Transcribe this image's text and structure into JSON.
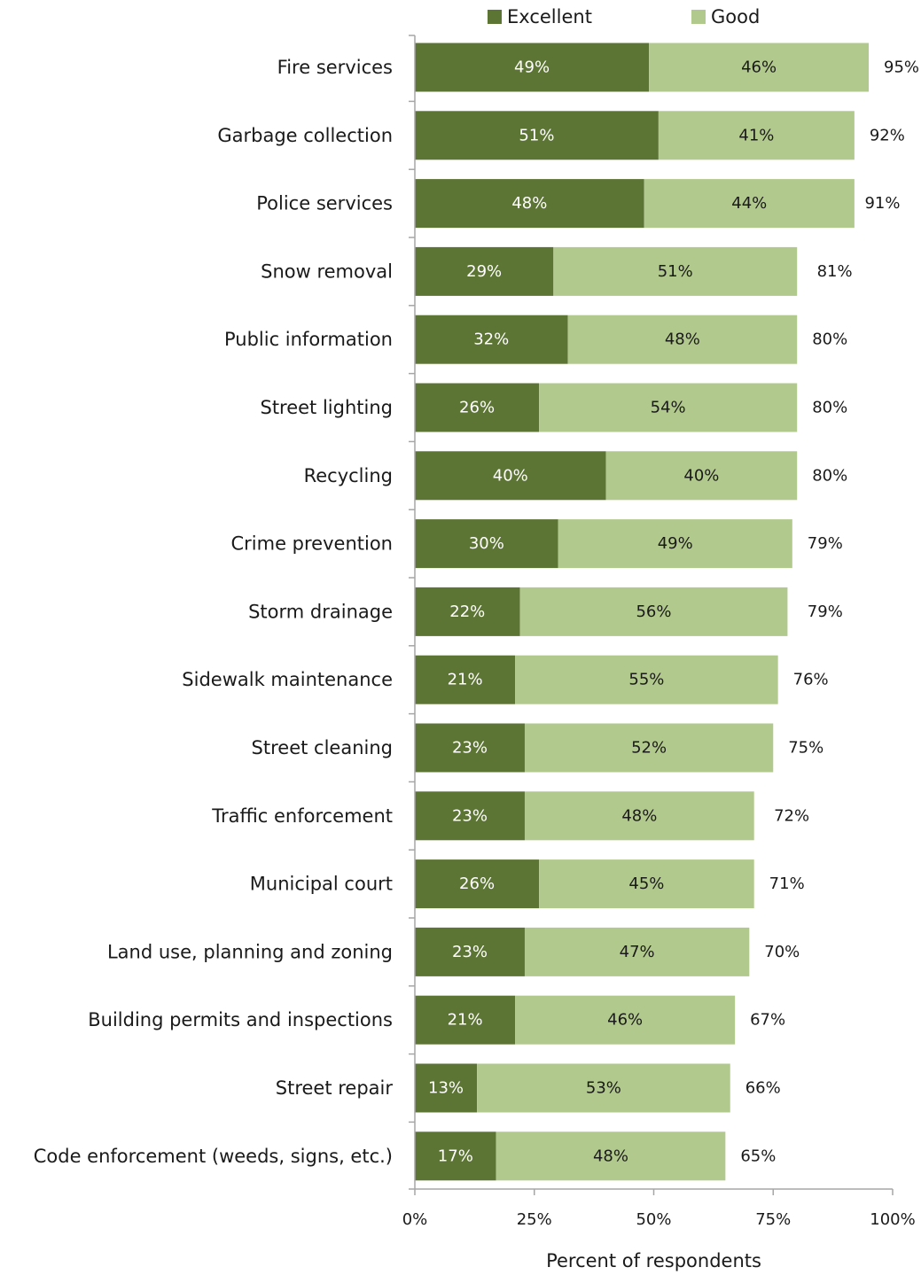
{
  "chart_data": {
    "type": "bar",
    "orientation": "horizontal",
    "stacked": true,
    "title": "",
    "xlabel": "Percent of respondents",
    "ylabel": "",
    "xlim": [
      0,
      100
    ],
    "x_ticks": [
      "0%",
      "25%",
      "50%",
      "75%",
      "100%"
    ],
    "x_tick_values": [
      0,
      25,
      50,
      75,
      100
    ],
    "grid": false,
    "legend_position": "top",
    "categories": [
      "Fire services",
      "Garbage collection",
      "Police services",
      "Snow removal",
      "Public information",
      "Street lighting",
      "Recycling",
      "Crime prevention",
      "Storm drainage",
      "Sidewalk maintenance",
      "Street cleaning",
      "Traffic enforcement",
      "Municipal court",
      "Land use, planning and zoning",
      "Building permits and inspections",
      "Street repair",
      "Code enforcement (weeds, signs, etc.)"
    ],
    "series": [
      {
        "name": "Excellent",
        "color": "#5d7534",
        "label_color": "#ffffff",
        "values": [
          49,
          51,
          48,
          29,
          32,
          26,
          40,
          30,
          22,
          21,
          23,
          23,
          26,
          23,
          21,
          13,
          17
        ],
        "labels": [
          "49%",
          "51%",
          "48%",
          "29%",
          "32%",
          "26%",
          "40%",
          "30%",
          "22%",
          "21%",
          "23%",
          "23%",
          "26%",
          "23%",
          "21%",
          "13%",
          "17%"
        ]
      },
      {
        "name": "Good",
        "color": "#b2c98d",
        "label_color": "#1a1a1a",
        "values": [
          46,
          41,
          44,
          51,
          48,
          54,
          40,
          49,
          56,
          55,
          52,
          48,
          45,
          47,
          46,
          53,
          48
        ],
        "labels": [
          "46%",
          "41%",
          "44%",
          "51%",
          "48%",
          "54%",
          "40%",
          "49%",
          "56%",
          "55%",
          "52%",
          "48%",
          "45%",
          "47%",
          "46%",
          "53%",
          "48%"
        ]
      }
    ],
    "totals": [
      95,
      92,
      91,
      81,
      80,
      80,
      80,
      79,
      79,
      76,
      75,
      72,
      71,
      70,
      67,
      66,
      65
    ],
    "total_labels": [
      "95%",
      "92%",
      "91%",
      "81%",
      "80%",
      "80%",
      "80%",
      "79%",
      "79%",
      "76%",
      "75%",
      "72%",
      "71%",
      "70%",
      "67%",
      "66%",
      "65%"
    ],
    "axis_color": "#a6a6a6"
  }
}
